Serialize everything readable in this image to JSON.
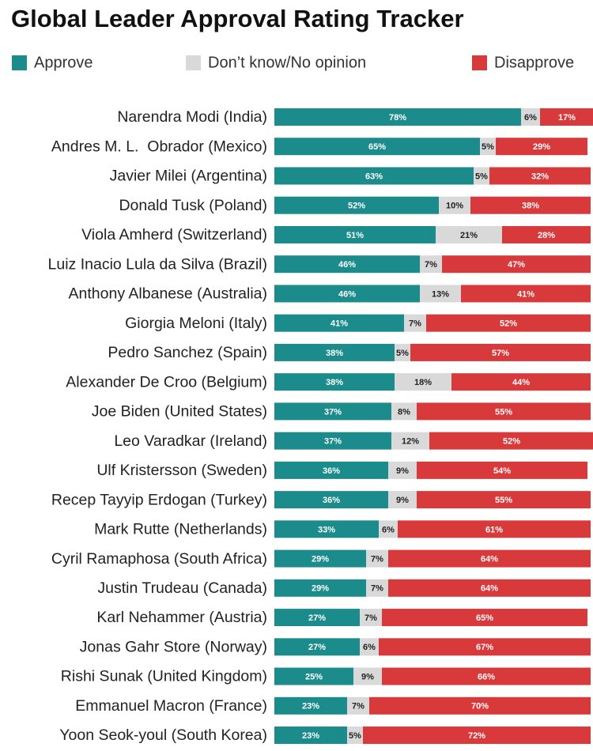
{
  "chart_data": {
    "type": "stacked-bar-horizontal",
    "title": "Global Leader Approval Rating Tracker",
    "xlim": [
      0,
      100
    ],
    "legend": "top",
    "categories": [
      "Narendra Modi (India)",
      "Andres M. L.  Obrador (Mexico)",
      "Javier Milei (Argentina)",
      "Donald Tusk (Poland)",
      "Viola Amherd (Switzerland)",
      "Luiz Inacio Lula da Silva (Brazil)",
      "Anthony Albanese (Australia)",
      "Giorgia Meloni (Italy)",
      "Pedro Sanchez (Spain)",
      "Alexander De Croo (Belgium)",
      "Joe Biden (United States)",
      "Leo Varadkar (Ireland)",
      "Ulf Kristersson (Sweden)",
      "Recep Tayyip Erdogan (Turkey)",
      "Mark Rutte (Netherlands)",
      "Cyril Ramaphosa (South Africa)",
      "Justin Trudeau (Canada)",
      "Karl Nehammer (Austria)",
      "Jonas Gahr Store (Norway)",
      "Rishi Sunak (United Kingdom)",
      "Emmanuel Macron (France)",
      "Yoon Seok-youl (South Korea)"
    ],
    "series": [
      {
        "name": "Approve",
        "color": "#1b8b8b",
        "label_color": "#ffffff",
        "values": [
          78,
          65,
          63,
          52,
          51,
          46,
          46,
          41,
          38,
          38,
          37,
          37,
          36,
          36,
          33,
          29,
          29,
          27,
          27,
          25,
          23,
          23
        ],
        "value_labels": [
          "78%",
          "65%",
          "63%",
          "52%",
          "51%",
          "46%",
          "46%",
          "41%",
          "38%",
          "38%",
          "37%",
          "37%",
          "36%",
          "36%",
          "33%",
          "29%",
          "29%",
          "27%",
          "27%",
          "25%",
          "23%",
          "23%"
        ]
      },
      {
        "name": "Don’t know/No opinion",
        "color": "#d9d9d9",
        "label_color": "#222222",
        "values": [
          6,
          5,
          5,
          10,
          21,
          7,
          13,
          7,
          5,
          18,
          8,
          12,
          9,
          9,
          6,
          7,
          7,
          7,
          6,
          9,
          7,
          5
        ],
        "value_labels": [
          "6%",
          "5%",
          "5%",
          "10%",
          "21%",
          "7%",
          "13%",
          "7%",
          "5%",
          "18%",
          "8%",
          "12%",
          "9%",
          "9%",
          "6%",
          "7%",
          "7%",
          "7%",
          "6%",
          "9%",
          "7%",
          "5%"
        ]
      },
      {
        "name": "Disapprove",
        "color": "#d8393b",
        "label_color": "#ffffff",
        "values": [
          17,
          29,
          32,
          38,
          28,
          47,
          41,
          52,
          57,
          44,
          55,
          52,
          54,
          55,
          61,
          64,
          64,
          65,
          67,
          66,
          70,
          72
        ],
        "value_labels": [
          "17%",
          "29%",
          "32%",
          "38%",
          "28%",
          "47%",
          "41%",
          "52%",
          "57%",
          "44%",
          "55%",
          "52%",
          "54%",
          "55%",
          "61%",
          "64%",
          "64%",
          "65%",
          "67%",
          "66%",
          "70%",
          "72%"
        ]
      }
    ]
  }
}
